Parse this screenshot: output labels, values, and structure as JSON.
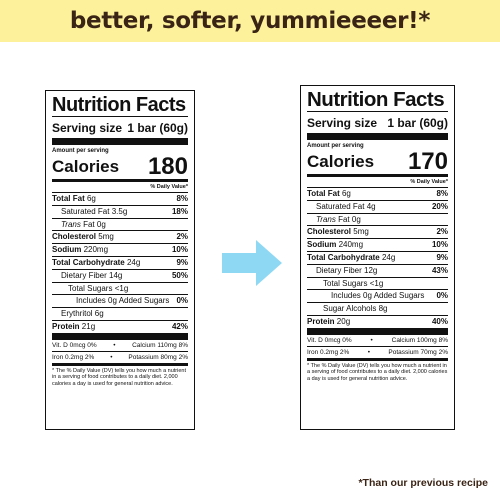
{
  "banner": {
    "text": "better, softer, yummieeeer!*"
  },
  "colors": {
    "banner_bg": "#fdf29b",
    "banner_text": "#3a2415",
    "arrow": "#8fd8f3"
  },
  "old_label": {
    "title": "Nutrition Facts",
    "serving_label": "Serving size",
    "serving_value": "1 bar (60g)",
    "amount_per_serving": "Amount per serving",
    "calories_label": "Calories",
    "calories_value": "180",
    "dv_header": "% Daily Value*",
    "rows": [
      {
        "label": "Total Fat",
        "amount": "6g",
        "dv": "8%"
      },
      {
        "label": "Saturated Fat",
        "amount": "3.5g",
        "dv": "18%"
      },
      {
        "label": "Trans",
        "amount": "Fat 0g",
        "dv": ""
      },
      {
        "label": "Cholesterol",
        "amount": "5mg",
        "dv": "2%"
      },
      {
        "label": "Sodium",
        "amount": "220mg",
        "dv": "10%"
      },
      {
        "label": "Total Carbohydrate",
        "amount": "24g",
        "dv": "9%"
      },
      {
        "label": "Dietary Fiber",
        "amount": "14g",
        "dv": "50%"
      },
      {
        "label": "Total Sugars",
        "amount": "<1g",
        "dv": ""
      },
      {
        "label": "Includes 0g Added Sugars",
        "amount": "",
        "dv": "0%"
      },
      {
        "label": "Erythritol",
        "amount": "6g",
        "dv": ""
      },
      {
        "label": "Protein",
        "amount": "21g",
        "dv": "42%"
      }
    ],
    "vitamins": [
      [
        "Vit. D 0mcg 0%",
        "Calcium 110mg 8%"
      ],
      [
        "Iron 0.2mg 2%",
        "Potassium 80mg 2%"
      ]
    ],
    "footnote": "* The % Daily Value (DV) tells you how much a nutrient in a serving of food contributes to a daily diet. 2,000 calories a day is used for general nutrition advice."
  },
  "new_label": {
    "title": "Nutrition Facts",
    "serving_label": "Serving size",
    "serving_value": "1 bar (60g)",
    "amount_per_serving": "Amount per serving",
    "calories_label": "Calories",
    "calories_value": "170",
    "dv_header": "% Daily Value*",
    "rows": [
      {
        "label": "Total Fat",
        "amount": "6g",
        "dv": "8%"
      },
      {
        "label": "Saturated Fat",
        "amount": "4g",
        "dv": "20%"
      },
      {
        "label": "Trans",
        "amount": "Fat 0g",
        "dv": ""
      },
      {
        "label": "Cholesterol",
        "amount": "5mg",
        "dv": "2%"
      },
      {
        "label": "Sodium",
        "amount": "240mg",
        "dv": "10%"
      },
      {
        "label": "Total Carbohydrate",
        "amount": "24g",
        "dv": "9%"
      },
      {
        "label": "Dietary Fiber",
        "amount": "12g",
        "dv": "43%"
      },
      {
        "label": "Total Sugars",
        "amount": "<1g",
        "dv": ""
      },
      {
        "label": "Includes 0g Added Sugars",
        "amount": "",
        "dv": "0%"
      },
      {
        "label": "Sugar Alcohols",
        "amount": "8g",
        "dv": ""
      },
      {
        "label": "Protein",
        "amount": "20g",
        "dv": "40%"
      }
    ],
    "vitamins": [
      [
        "Vit. D 0mcg 0%",
        "Calcium 100mg 8%"
      ],
      [
        "Iron 0.2mg 2%",
        "Potassium 70mg 2%"
      ]
    ],
    "footnote": "* The % Daily Value (DV) tells you how much a nutrient in a serving of food contributes to a daily diet. 2,000 calories a day is used for general nutrition advice."
  },
  "note": "*Than our previous recipe"
}
